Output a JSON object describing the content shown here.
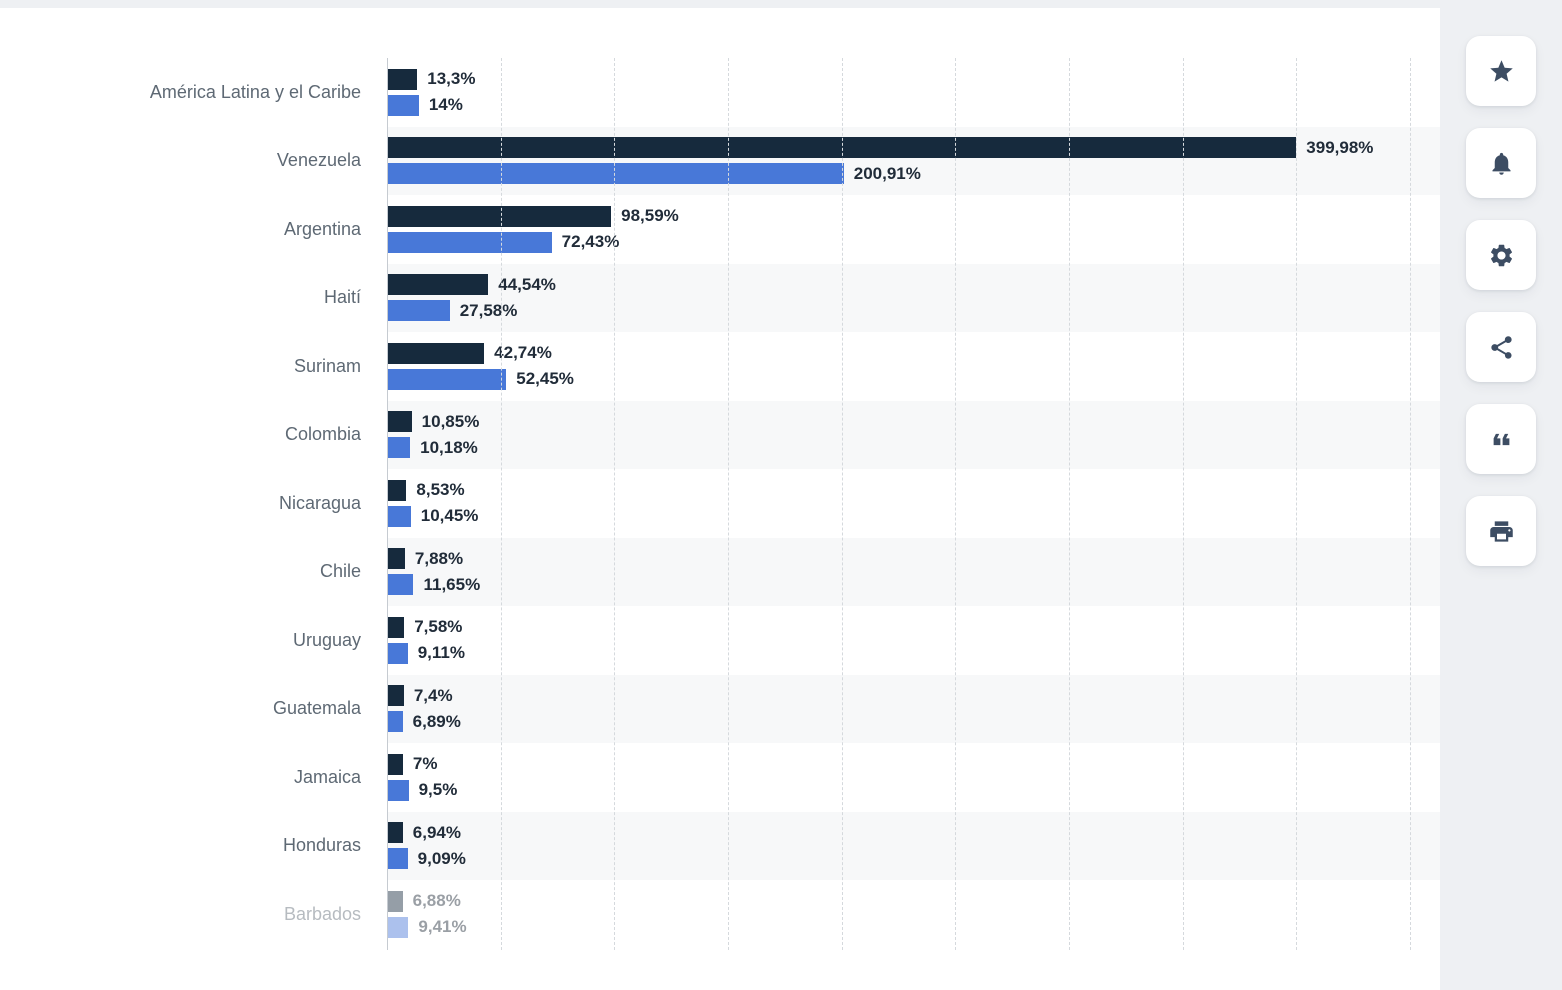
{
  "chart_data": {
    "type": "bar",
    "orientation": "horizontal",
    "categories": [
      "América Latina y el Caribe",
      "Venezuela",
      "Argentina",
      "Haití",
      "Surinam",
      "Colombia",
      "Nicaragua",
      "Chile",
      "Uruguay",
      "Guatemala",
      "Jamaica",
      "Honduras",
      "Barbados"
    ],
    "series": [
      {
        "name": "series-1-dark-navy",
        "color": "#162a3d",
        "values": [
          13.3,
          399.98,
          98.59,
          44.54,
          42.74,
          10.85,
          8.53,
          7.88,
          7.58,
          7.4,
          7,
          6.94,
          6.88
        ],
        "labels": [
          "13,3%",
          "399,98%",
          "98,59%",
          "44,54%",
          "42,74%",
          "10,85%",
          "8,53%",
          "7,88%",
          "7,58%",
          "7,4%",
          "7%",
          "6,94%",
          "6,88%"
        ]
      },
      {
        "name": "series-2-blue",
        "color": "#4878d8",
        "values": [
          14,
          200.91,
          72.43,
          27.58,
          52.45,
          10.18,
          10.45,
          11.65,
          9.11,
          6.89,
          9.5,
          9.09,
          9.41
        ],
        "labels": [
          "14%",
          "200,91%",
          "72,43%",
          "27,58%",
          "52,45%",
          "10,18%",
          "10,45%",
          "11,65%",
          "9,11%",
          "6,89%",
          "9,5%",
          "9,09%",
          "9,41%"
        ]
      }
    ],
    "xlim": [
      0,
      450
    ],
    "gridline_step": 50,
    "grid": "dashed-vertical",
    "legend": "none",
    "faded_categories": [
      "Barbados"
    ]
  },
  "toolbar": {
    "buttons": [
      {
        "name": "favorite-button",
        "icon": "star-icon"
      },
      {
        "name": "alerts-button",
        "icon": "bell-icon"
      },
      {
        "name": "settings-button",
        "icon": "gear-icon"
      },
      {
        "name": "share-button",
        "icon": "share-icon"
      },
      {
        "name": "cite-button",
        "icon": "quote-icon"
      },
      {
        "name": "print-button",
        "icon": "printer-icon"
      }
    ]
  },
  "colors": {
    "series_dark": "#162a3d",
    "series_blue": "#4878d8",
    "category_text": "#5e6974",
    "value_text": "#212c39",
    "stripe": "#f7f8f9",
    "grid_line": "#d5d9dd",
    "axis_line": "#c6cbd1",
    "page_bg": "#eef0f3",
    "card_bg": "#ffffff",
    "icon": "#3d4d63"
  }
}
